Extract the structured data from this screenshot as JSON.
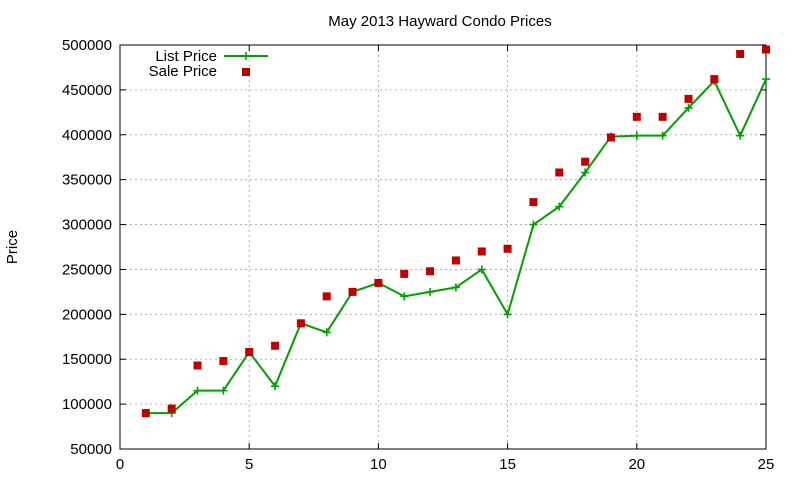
{
  "chart_data": {
    "type": "line",
    "title": "May 2013 Hayward Condo Prices",
    "xlabel": "",
    "ylabel": "Price",
    "xlim": [
      0,
      25
    ],
    "ylim": [
      50000,
      500000
    ],
    "x_ticks": [
      "0",
      "5",
      "10",
      "15",
      "20",
      "25"
    ],
    "y_ticks": [
      "50000",
      "100000",
      "150000",
      "200000",
      "250000",
      "300000",
      "350000",
      "400000",
      "450000",
      "500000"
    ],
    "grid": true,
    "legend_position": "top-left",
    "x": [
      1,
      2,
      3,
      4,
      5,
      6,
      7,
      8,
      9,
      10,
      11,
      12,
      13,
      14,
      15,
      16,
      17,
      18,
      19,
      20,
      21,
      22,
      23,
      24,
      25
    ],
    "series": [
      {
        "name": "List Price",
        "style": "line-with-plus-markers",
        "color": "#00a000",
        "values": [
          90000,
          90000,
          115000,
          115000,
          158000,
          120000,
          190000,
          180000,
          225000,
          235000,
          220000,
          225000,
          230000,
          250000,
          200000,
          300000,
          320000,
          358000,
          398000,
          399000,
          399000,
          430000,
          460000,
          399000,
          462000
        ]
      },
      {
        "name": "Sale Price",
        "style": "square-markers",
        "color": "#c00000",
        "values": [
          90000,
          95000,
          143000,
          148000,
          158000,
          165000,
          190000,
          220000,
          225000,
          235000,
          245000,
          248000,
          260000,
          270000,
          273000,
          325000,
          358000,
          370000,
          397000,
          420000,
          420000,
          440000,
          462000,
          490000,
          495000
        ]
      }
    ]
  }
}
